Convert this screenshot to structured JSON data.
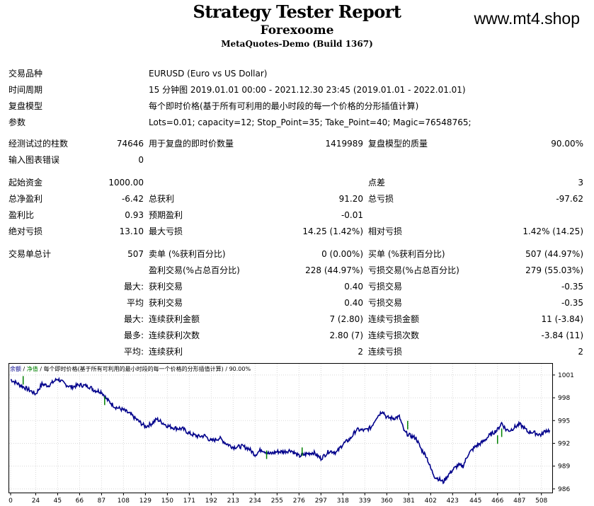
{
  "header": {
    "title": "Strategy Tester Report",
    "subtitle": "Forexoome",
    "build": "MetaQuotes-Demo (Build 1367)",
    "watermark": "www.mt4.shop"
  },
  "info": [
    {
      "label": "交易品种",
      "value": "EURUSD (Euro vs US Dollar)"
    },
    {
      "label": "时间周期",
      "value": "15 分钟图 2019.01.01 00:00 - 2021.12.30 23:45 (2019.01.01 - 2022.01.01)"
    },
    {
      "label": "复盘模型",
      "value": "每个即时价格(基于所有可利用的最小时段的每一个价格的分形插值计算)"
    },
    {
      "label": "参数",
      "value": "Lots=0.01; capacity=12; Stop_Point=35; Take_Point=40; Magic=76548765;"
    }
  ],
  "stats": {
    "bars_label": "经测试过的柱数",
    "bars": "74646",
    "ticks_label": "用于复盘的即时价数量",
    "ticks": "1419989",
    "quality_label": "复盘模型的质量",
    "quality": "90.00%",
    "errors_label": "输入图表错误",
    "errors": "0",
    "deposit_label": "起始资金",
    "deposit": "1000.00",
    "spread_label": "点差",
    "spread": "3",
    "net_label": "总净盈利",
    "net": "-6.42",
    "gross_profit_label": "总获利",
    "gross_profit": "91.20",
    "gross_loss_label": "总亏损",
    "gross_loss": "-97.62",
    "pf_label": "盈利比",
    "pf": "0.93",
    "payoff_label": "预期盈利",
    "payoff": "-0.01",
    "abs_dd_label": "绝对亏损",
    "abs_dd": "13.10",
    "max_dd_label": "最大亏损",
    "max_dd": "14.25 (1.42%)",
    "rel_dd_label": "相对亏损",
    "rel_dd": "1.42% (14.25)",
    "total_trades_label": "交易单总计",
    "total_trades": "507",
    "short_label": "卖单 (%获利百分比)",
    "short": "0 (0.00%)",
    "long_label": "买单 (%获利百分比)",
    "long": "507 (44.97%)",
    "profit_trades_label": "盈利交易(%占总百分比)",
    "profit_trades": "228 (44.97%)",
    "loss_trades_label": "亏损交易(%占总百分比)",
    "loss_trades": "279 (55.03%)",
    "largest_prefix": "最大:",
    "largest_profit_label": "获利交易",
    "largest_profit": "0.40",
    "largest_loss_label": "亏损交易",
    "largest_loss": "-0.35",
    "average_prefix": "平均",
    "average_profit_label": "获利交易",
    "average_profit": "0.40",
    "average_loss_label": "亏损交易",
    "average_loss": "-0.35",
    "max_prefix": "最大:",
    "max_cons_wins_label": "连续获利金额",
    "max_cons_wins": "7 (2.80)",
    "max_cons_losses_label": "连续亏损金额",
    "max_cons_losses": "11 (-3.84)",
    "maximal_prefix": "最多:",
    "maximal_cons_profit_label": "连续获利次数",
    "maximal_cons_profit": "2.80 (7)",
    "maximal_cons_loss_label": "连续亏损次数",
    "maximal_cons_loss": "-3.84 (11)",
    "avg_prefix": "平均:",
    "avg_cons_wins_label": "连续获利",
    "avg_cons_wins": "2",
    "avg_cons_losses_label": "连续亏损",
    "avg_cons_losses": "2"
  },
  "chart_data": {
    "type": "line",
    "legend": {
      "balance": "余额",
      "sep1": " / ",
      "equity": "净值",
      "rest": " / 每个即时价格(基于所有可利用的最小时段的每一个价格的分形插值计算) / 90.00%"
    },
    "colors": {
      "balance": "#00008b",
      "equity": "#008000",
      "grid": "#d8d8d8",
      "border": "#000000"
    },
    "x_ticks": [
      0,
      24,
      45,
      66,
      87,
      108,
      129,
      150,
      171,
      192,
      213,
      234,
      255,
      276,
      297,
      318,
      339,
      360,
      381,
      402,
      423,
      445,
      466,
      487,
      508
    ],
    "y_ticks": [
      1001,
      998,
      995,
      992,
      989,
      986
    ],
    "xlim": [
      0,
      517
    ],
    "ylim": [
      985.8,
      1002.2
    ],
    "series": [
      {
        "name": "余额",
        "x": [
          0,
          10,
          18,
          24,
          30,
          36,
          45,
          52,
          58,
          66,
          75,
          80,
          87,
          92,
          100,
          108,
          115,
          120,
          129,
          135,
          140,
          150,
          158,
          165,
          171,
          180,
          186,
          192,
          200,
          206,
          213,
          222,
          228,
          234,
          240,
          248,
          255,
          262,
          268,
          276,
          283,
          290,
          297,
          305,
          312,
          318,
          325,
          331,
          339,
          345,
          350,
          356,
          360,
          366,
          372,
          377,
          381,
          388,
          393,
          398,
          402,
          406,
          410,
          414,
          418,
          423,
          428,
          433,
          438,
          445,
          452,
          458,
          463,
          466,
          470,
          474,
          478,
          482,
          487,
          491,
          495,
          499,
          503,
          508,
          512,
          516
        ],
        "y": [
          1000.4,
          999.6,
          999.0,
          998.5,
          999.8,
          999.6,
          1000.5,
          999.8,
          999.4,
          999.7,
          999.5,
          999.0,
          998.8,
          997.8,
          996.8,
          996.4,
          995.8,
          995.2,
          994.2,
          994.6,
          995.2,
          994.3,
          994.0,
          993.9,
          993.3,
          992.9,
          993.0,
          992.3,
          992.7,
          992.0,
          991.5,
          991.6,
          991.3,
          990.5,
          991.2,
          990.6,
          990.9,
          990.9,
          991.1,
          990.3,
          990.6,
          990.8,
          990.0,
          991.0,
          990.8,
          991.9,
          992.6,
          993.8,
          993.7,
          994.1,
          995.4,
          996.3,
          995.4,
          995.3,
          995.5,
          993.5,
          993.1,
          992.7,
          991.2,
          990.3,
          988.7,
          987.6,
          987.3,
          986.9,
          987.7,
          988.5,
          989.1,
          989.0,
          990.6,
          991.6,
          992.2,
          993.0,
          993.5,
          993.8,
          994.7,
          993.8,
          993.7,
          994.1,
          994.5,
          994.1,
          993.5,
          993.5,
          993.3,
          993.1,
          993.7,
          993.7
        ]
      },
      {
        "name": "净值",
        "x": [
          12,
          90,
          245,
          279,
          380,
          466,
          470
        ],
        "y": [
          1000.3,
          997.6,
          990.5,
          990.9,
          994.4,
          992.5,
          993.4
        ]
      }
    ]
  }
}
